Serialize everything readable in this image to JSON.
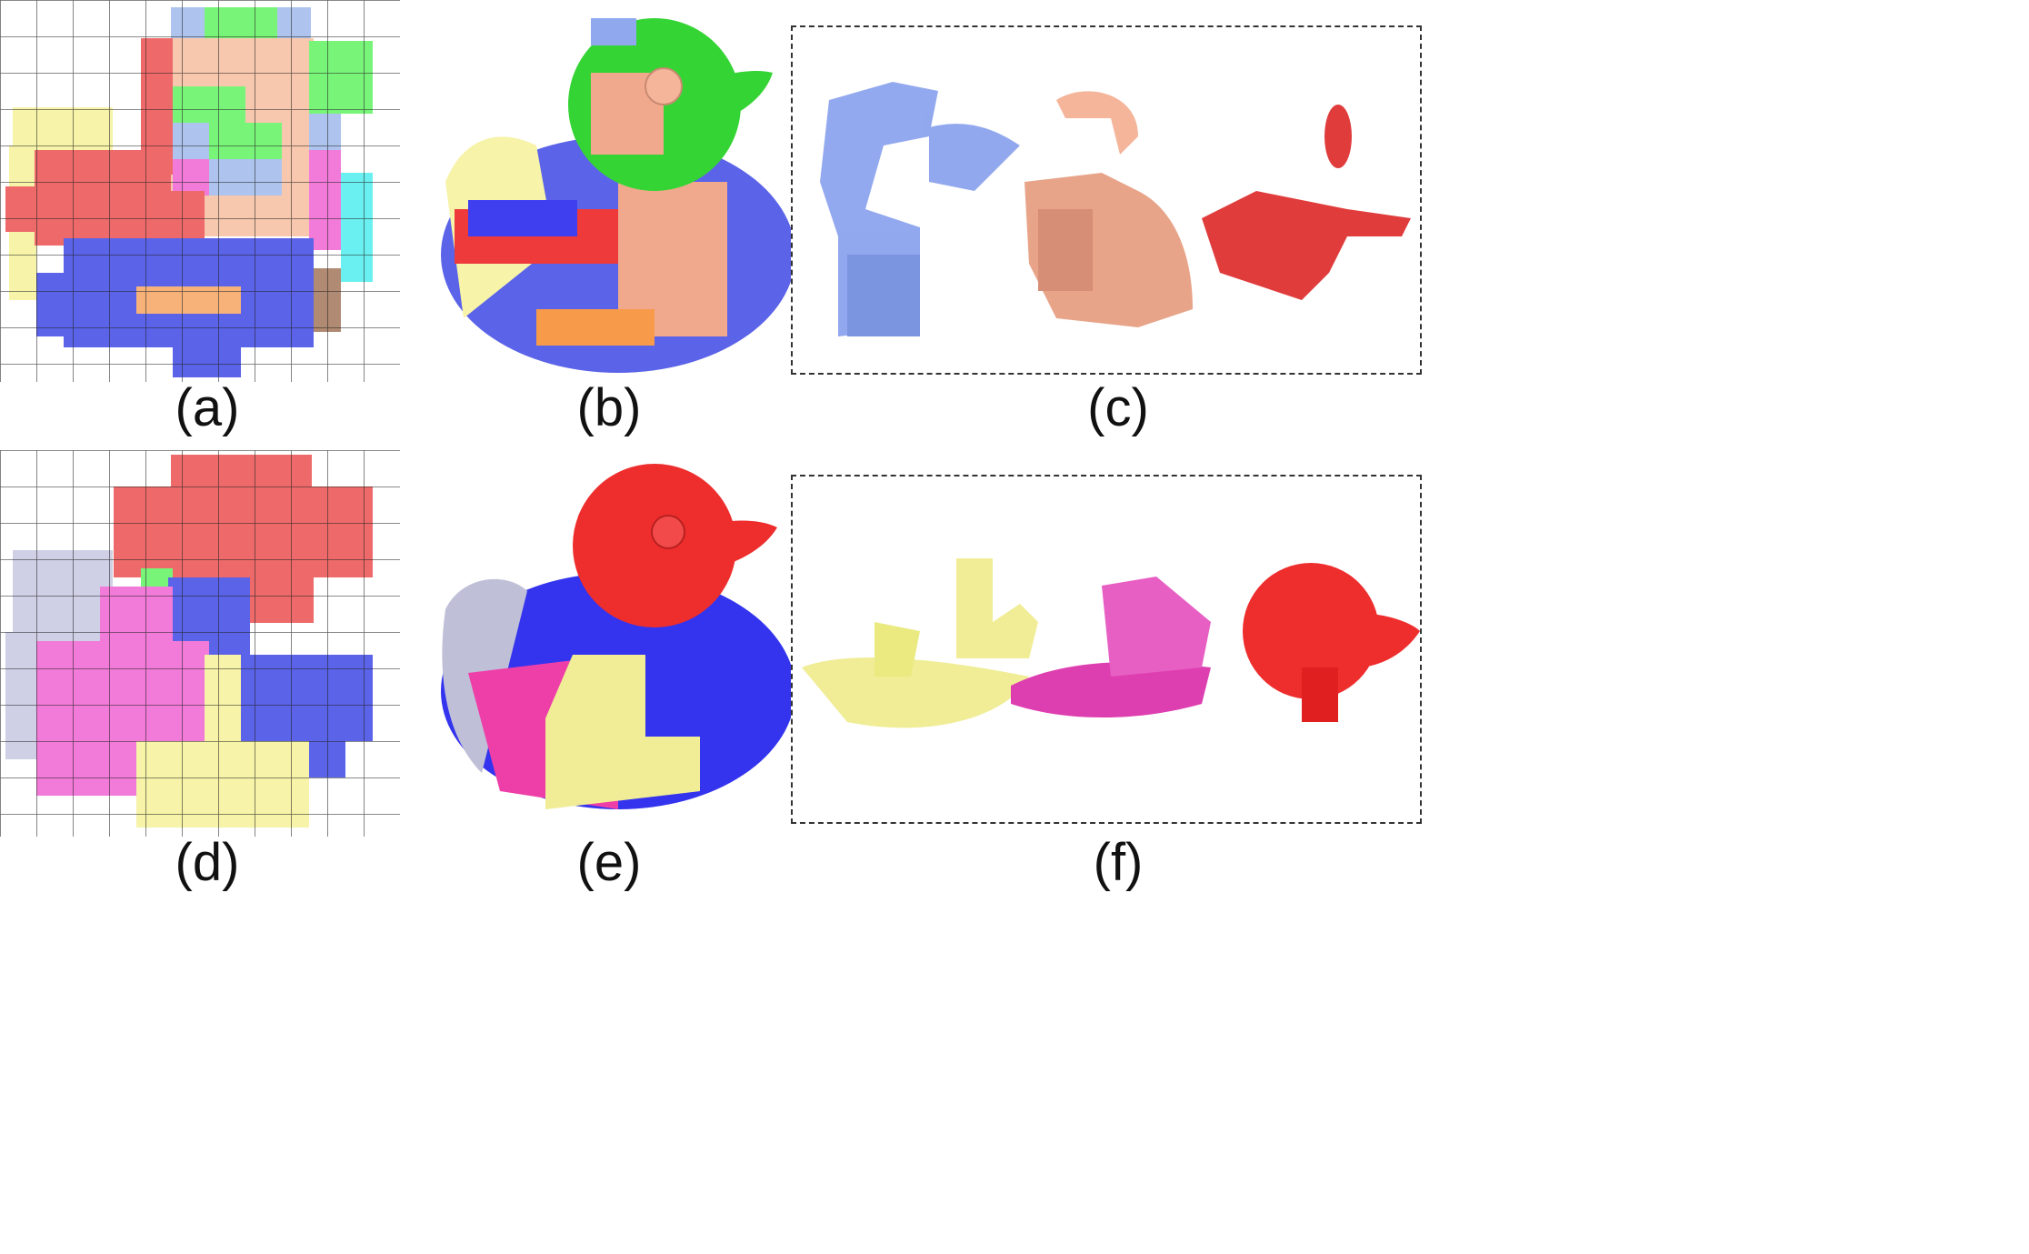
{
  "captions": {
    "a": "(a)",
    "b": "(b)",
    "c": "(c)",
    "d": "(d)",
    "e": "(e)",
    "f": "(f)"
  },
  "colors": {
    "blue": "#5b63e8",
    "light_blue": "#aec4ee",
    "green": "#78f578",
    "peach": "#f7c8ad",
    "red": "#ee6a6a",
    "pink": "#f27ad8",
    "yellow": "#f7f3a8",
    "orange": "#f7b27a",
    "cyan": "#6af0f0",
    "lavender": "#cfd0e6",
    "magenta": "#de3fb0",
    "duck_red": "#ee2d2d"
  }
}
